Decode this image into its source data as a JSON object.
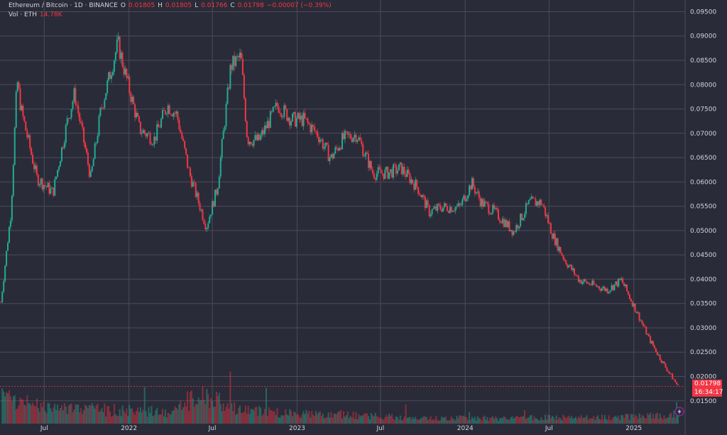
{
  "legend": {
    "symbol": "Ethereum / Bitcoin · 1D · BINANCE",
    "o_label": "O",
    "o_value": "0.01805",
    "h_label": "H",
    "h_value": "0.01805",
    "l_label": "L",
    "l_value": "0.01766",
    "c_label": "C",
    "c_value": "0.01798",
    "change": "−0.00007 (−0.39%)",
    "vol_label": "Vol · ETH",
    "vol_value": "14.78K"
  },
  "price_tag": {
    "value": "0.01798",
    "countdown": "16:34:17"
  },
  "colors": {
    "background": "#2a2b38",
    "grid": "#4a4c5a",
    "up": "#22ab94",
    "down": "#f23645",
    "axis_text": "#d1d4dc"
  },
  "icons": {
    "indicator": "lightning-icon"
  },
  "chart_data": {
    "type": "candlestick",
    "title": "Ethereum / Bitcoin · 1D · BINANCE",
    "xlabel": "",
    "ylabel": "",
    "y_range": [
      0.0103,
      0.0974
    ],
    "y_ticks": [
      "0.09500",
      "0.09000",
      "0.08500",
      "0.08000",
      "0.07500",
      "0.07000",
      "0.06500",
      "0.06000",
      "0.05500",
      "0.05000",
      "0.04500",
      "0.04000",
      "0.03500",
      "0.03000",
      "0.02500",
      "0.02000",
      "0.01500"
    ],
    "x_ticks": [
      "Jul",
      "2022",
      "Jul",
      "2023",
      "Jul",
      "2024",
      "Jul",
      "2025"
    ],
    "x_range": [
      "2021-03-27",
      "2025-04-07"
    ],
    "grid": true,
    "series": [
      {
        "name": "Ethereum / Bitcoin",
        "x": [
          "2021-03-29",
          "2021-04-20",
          "2021-05-03",
          "2021-05-12",
          "2021-06-15",
          "2021-07-20",
          "2021-08-20",
          "2021-09-05",
          "2021-10-10",
          "2021-11-01",
          "2021-12-08",
          "2021-12-25",
          "2022-01-24",
          "2022-02-25",
          "2022-03-25",
          "2022-04-15",
          "2022-05-12",
          "2022-06-18",
          "2022-07-12",
          "2022-08-10",
          "2022-09-01",
          "2022-09-15",
          "2022-10-10",
          "2022-11-20",
          "2022-12-20",
          "2023-01-15",
          "2023-02-15",
          "2023-03-15",
          "2023-04-10",
          "2023-05-10",
          "2023-06-15",
          "2023-07-15",
          "2023-08-15",
          "2023-09-20",
          "2023-10-15",
          "2023-11-10",
          "2023-12-20",
          "2024-01-15",
          "2024-02-05",
          "2024-03-05",
          "2024-04-15",
          "2024-05-20",
          "2024-06-15",
          "2024-07-10",
          "2024-08-05",
          "2024-09-05",
          "2024-10-05",
          "2024-11-05",
          "2024-12-05",
          "2025-01-05",
          "2025-02-03",
          "2025-03-05",
          "2025-04-07"
        ],
        "close": [
          0.0353,
          0.054,
          0.081,
          0.0748,
          0.0608,
          0.0578,
          0.0724,
          0.0782,
          0.0608,
          0.0748,
          0.0885,
          0.0818,
          0.0708,
          0.0688,
          0.0758,
          0.0738,
          0.0618,
          0.0508,
          0.0588,
          0.0838,
          0.0858,
          0.0688,
          0.0685,
          0.0758,
          0.0728,
          0.0728,
          0.0698,
          0.0648,
          0.0688,
          0.0698,
          0.0618,
          0.0618,
          0.0628,
          0.0588,
          0.0538,
          0.0548,
          0.0548,
          0.0598,
          0.0558,
          0.0538,
          0.0498,
          0.0558,
          0.0558,
          0.0488,
          0.0438,
          0.0398,
          0.0388,
          0.0378,
          0.0398,
          0.0338,
          0.0278,
          0.0228,
          0.01798
        ]
      }
    ],
    "volume": {
      "name": "Vol · ETH",
      "last": "14.78K",
      "x": [
        "2021-04",
        "2021-07",
        "2021-10",
        "2022-01",
        "2022-04",
        "2022-06",
        "2022-09",
        "2023-01",
        "2023-04",
        "2023-07",
        "2023-10",
        "2024-01",
        "2024-04",
        "2024-07",
        "2024-10",
        "2025-01",
        "2025-04"
      ],
      "relative": [
        0.9,
        0.55,
        0.5,
        0.45,
        0.4,
        1.0,
        0.45,
        0.35,
        0.3,
        0.25,
        0.18,
        0.2,
        0.18,
        0.22,
        0.2,
        0.25,
        0.3
      ]
    }
  }
}
